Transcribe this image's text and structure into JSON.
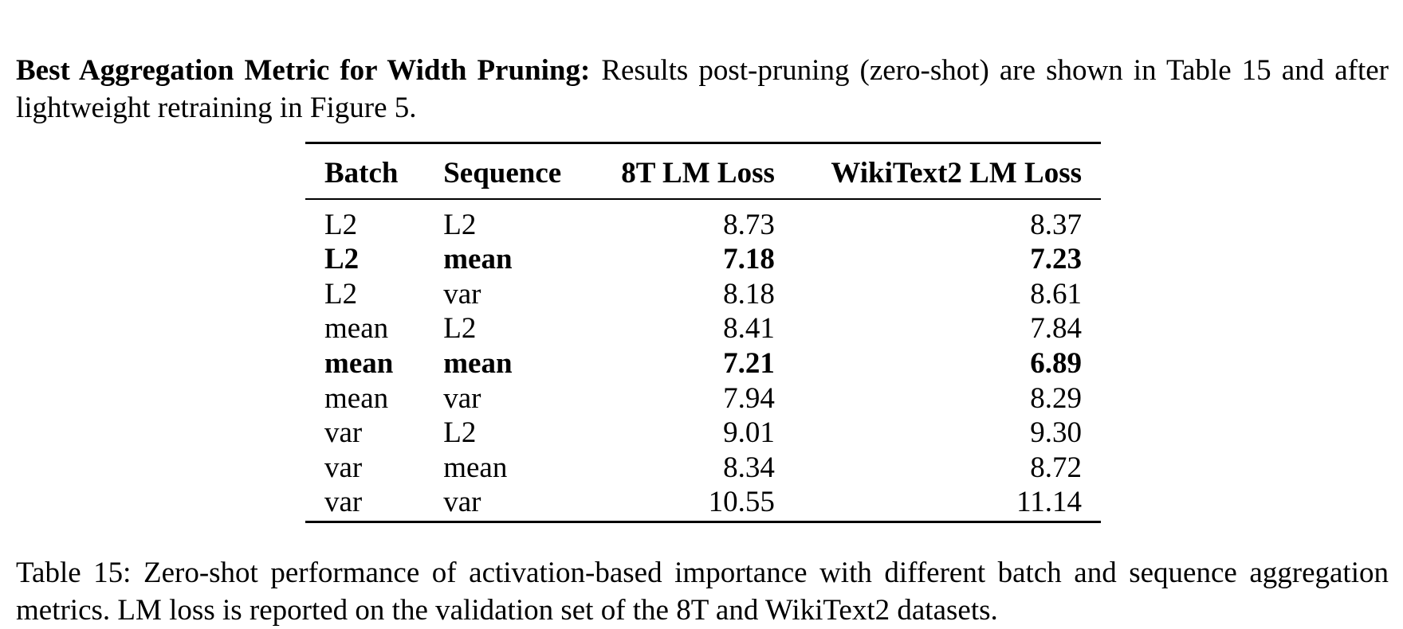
{
  "paragraph": {
    "heading": "Best Aggregation Metric for Width Pruning:",
    "text": "Results post-pruning (zero-shot) are shown in Table 15 and after lightweight retraining in Figure 5."
  },
  "table": {
    "columns": [
      "Batch",
      "Sequence",
      "8T LM Loss",
      "WikiText2 LM Loss"
    ],
    "rows": [
      {
        "batch": "L2",
        "sequence": "L2",
        "loss_8t": "8.73",
        "loss_wikitext2": "8.37",
        "bold": false
      },
      {
        "batch": "L2",
        "sequence": "mean",
        "loss_8t": "7.18",
        "loss_wikitext2": "7.23",
        "bold": true
      },
      {
        "batch": "L2",
        "sequence": "var",
        "loss_8t": "8.18",
        "loss_wikitext2": "8.61",
        "bold": false
      },
      {
        "batch": "mean",
        "sequence": "L2",
        "loss_8t": "8.41",
        "loss_wikitext2": "7.84",
        "bold": false
      },
      {
        "batch": "mean",
        "sequence": "mean",
        "loss_8t": "7.21",
        "loss_wikitext2": "6.89",
        "bold": true
      },
      {
        "batch": "mean",
        "sequence": "var",
        "loss_8t": "7.94",
        "loss_wikitext2": "8.29",
        "bold": false
      },
      {
        "batch": "var",
        "sequence": "L2",
        "loss_8t": "9.01",
        "loss_wikitext2": "9.30",
        "bold": false
      },
      {
        "batch": "var",
        "sequence": "mean",
        "loss_8t": "8.34",
        "loss_wikitext2": "8.72",
        "bold": false
      },
      {
        "batch": "var",
        "sequence": "var",
        "loss_8t": "10.55",
        "loss_wikitext2": "11.14",
        "bold": false
      }
    ]
  },
  "caption": "Table 15: Zero-shot performance of activation-based importance with different batch and sequence aggregation metrics. LM loss is reported on the validation set of the 8T and WikiText2 datasets."
}
